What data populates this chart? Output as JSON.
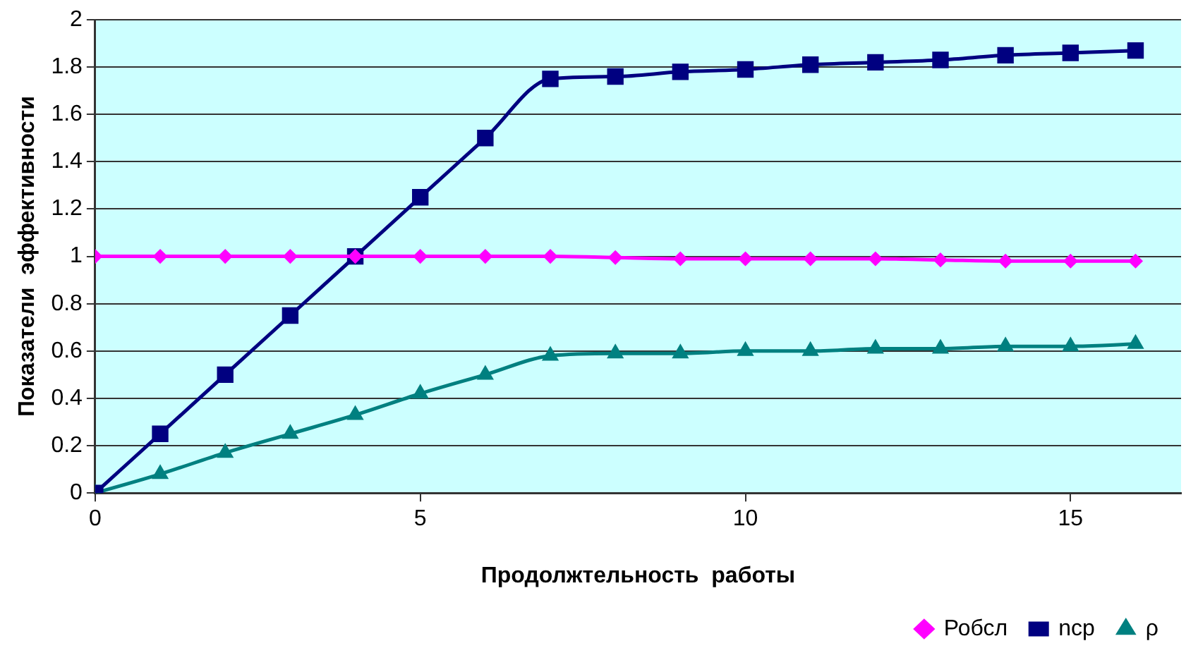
{
  "chart_data": {
    "type": "line",
    "xlabel": "Продолжтельность  работы",
    "ylabel": "Показатели  эффективности",
    "x": [
      0,
      1,
      2,
      3,
      4,
      5,
      6,
      7,
      8,
      9,
      10,
      11,
      12,
      13,
      14,
      15,
      16
    ],
    "series": [
      {
        "name": "Робсл",
        "color": "#ff00ff",
        "marker": "diamond",
        "values": [
          1,
          1,
          1,
          1,
          1,
          1,
          1,
          1,
          0.995,
          0.99,
          0.99,
          0.99,
          0.99,
          0.985,
          0.98,
          0.98,
          0.98
        ]
      },
      {
        "name": "nср",
        "color": "#000080",
        "marker": "square",
        "values": [
          0,
          0.25,
          0.5,
          0.75,
          1.0,
          1.25,
          1.5,
          1.75,
          1.76,
          1.78,
          1.79,
          1.81,
          1.82,
          1.83,
          1.85,
          1.86,
          1.87
        ]
      },
      {
        "name": "ρ",
        "color": "#008080",
        "marker": "triangle",
        "values": [
          0,
          0.08,
          0.17,
          0.25,
          0.33,
          0.42,
          0.5,
          0.58,
          0.59,
          0.59,
          0.6,
          0.6,
          0.61,
          0.61,
          0.62,
          0.62,
          0.63
        ]
      }
    ],
    "xlim": [
      0,
      16.7
    ],
    "xticks": [
      0,
      5,
      10,
      15
    ],
    "ylim": [
      0,
      2
    ],
    "yticks": [
      0,
      0.2,
      0.4,
      0.6,
      0.8,
      1,
      1.2,
      1.4,
      1.6,
      1.8,
      2
    ],
    "grid": "y",
    "legend": "bottom right"
  }
}
